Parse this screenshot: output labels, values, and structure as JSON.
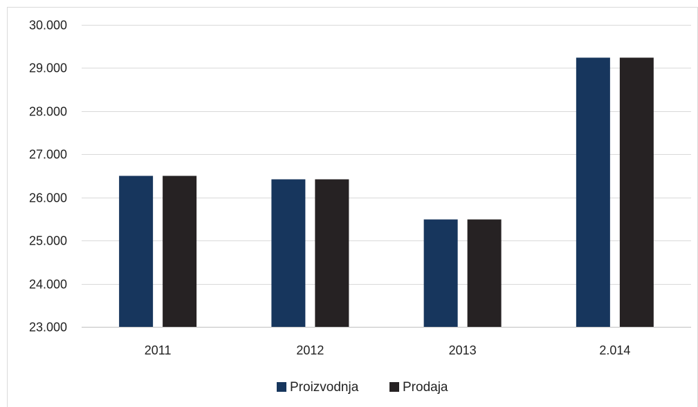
{
  "chart_data": {
    "type": "bar",
    "categories": [
      "2011",
      "2012",
      "2013",
      "2.014"
    ],
    "series": [
      {
        "name": "Proizvodnja",
        "values": [
          26500,
          26420,
          25490,
          29240
        ],
        "color": "#17365d"
      },
      {
        "name": "Prodaja",
        "values": [
          26500,
          26420,
          25490,
          29240
        ],
        "color": "#262223"
      }
    ],
    "ylim": [
      23000,
      30000
    ],
    "yticks": [
      23000,
      24000,
      25000,
      26000,
      27000,
      28000,
      29000,
      30000
    ],
    "ytick_labels": [
      "23.000",
      "24.000",
      "25.000",
      "26.000",
      "27.000",
      "28.000",
      "29.000",
      "30.000"
    ],
    "grid": true,
    "legend_position": "bottom",
    "title": "",
    "xlabel": "",
    "ylabel": ""
  }
}
